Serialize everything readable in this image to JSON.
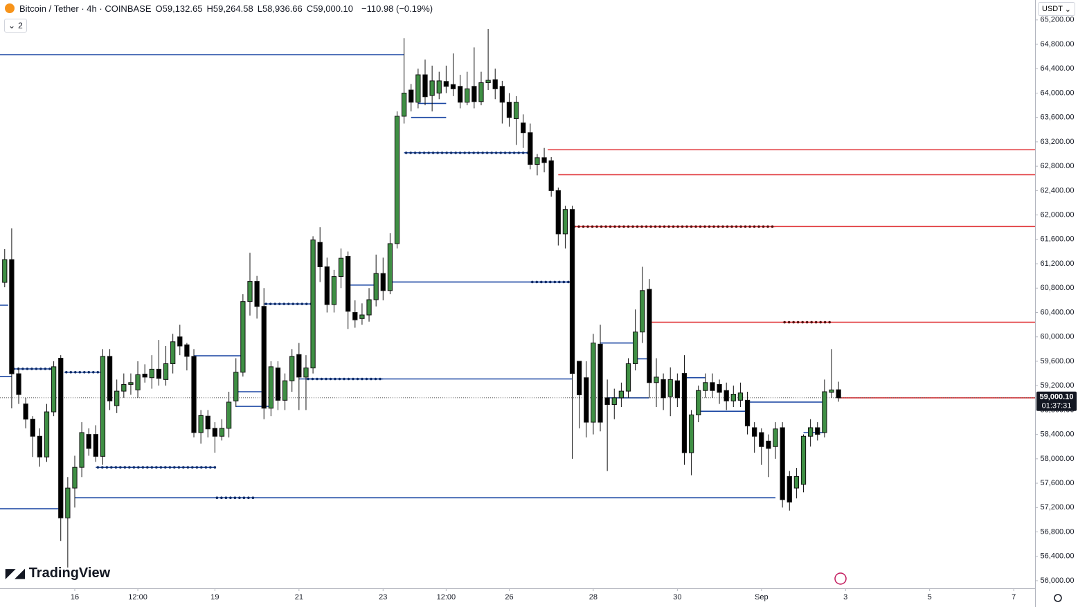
{
  "header": {
    "symbol": "Bitcoin / Tether · 4h · COINBASE",
    "ohlc": [
      {
        "key": "O",
        "text": "59,132.65"
      },
      {
        "key": "H",
        "text": "59,264.58"
      },
      {
        "key": "L",
        "text": "58,936.66"
      },
      {
        "key": "C",
        "text": "59,000.10"
      }
    ],
    "change": "−110.98 (−0.19%)",
    "indicator_count": "2",
    "currency": "USDT",
    "logo": "TradingView"
  },
  "chart_data": {
    "type": "candlestick",
    "up_color": "#3f8f44",
    "down_color": "#000000",
    "open": [
      60894,
      61268,
      59395,
      58900,
      58650,
      58370,
      58030,
      58770,
      59650,
      57030,
      57520,
      57860,
      58400,
      58400,
      58040,
      59680,
      58870,
      59110,
      59220,
      59130,
      59390,
      59330,
      59470,
      59300,
      59560,
      60000,
      59870,
      59680,
      58430,
      58700,
      58500,
      58370,
      58500,
      58950,
      59420,
      60580,
      60910,
      60500,
      58830,
      59490,
      58960,
      59280,
      59710,
      59340,
      59490,
      61550,
      61150,
      60530,
      60990,
      61320,
      60400,
      60300,
      60360,
      60610,
      61040,
      60760,
      61530,
      63620,
      64050,
      63850,
      64300,
      63960,
      64000,
      64190,
      64140,
      64110,
      63850,
      64110,
      63860,
      64170,
      64220,
      64110,
      63850,
      63580,
      63510,
      63350,
      62830,
      62940,
      62890,
      62400,
      61690,
      62090,
      59600,
      59330,
      58600,
      59880,
      59000,
      58890,
      59000,
      59110,
      59560,
      60080,
      60780,
      59250,
      59300,
      59020,
      59280,
      59400,
      58100,
      58720,
      59120,
      59250,
      59220,
      59120,
      58950,
      58960,
      58960,
      58510,
      58430,
      58290,
      58200,
      58510,
      57710,
      57520,
      57580,
      58370,
      58510,
      58430,
      59090,
      59132.65
    ],
    "high": [
      61439,
      61780,
      59500,
      59000,
      58700,
      58500,
      58900,
      59600,
      59700,
      57700,
      58050,
      58600,
      58500,
      58550,
      59800,
      59800,
      59300,
      59400,
      59400,
      59600,
      59550,
      59700,
      59950,
      59850,
      60050,
      60200,
      59900,
      59800,
      58800,
      58800,
      58600,
      58650,
      59100,
      59650,
      60700,
      61380,
      61000,
      60800,
      59600,
      59600,
      59400,
      59800,
      59900,
      59700,
      61650,
      61800,
      61300,
      61100,
      61450,
      61400,
      60600,
      60550,
      60800,
      61350,
      61300,
      61700,
      63700,
      64900,
      64150,
      64400,
      64550,
      64450,
      64350,
      64450,
      64650,
      64300,
      64350,
      64750,
      64350,
      65050,
      64400,
      64200,
      64000,
      63950,
      63650,
      63500,
      63000,
      63100,
      62950,
      62450,
      62150,
      62150,
      59600,
      59600,
      60050,
      60200,
      59300,
      59150,
      59250,
      59650,
      60450,
      61150,
      60950,
      59650,
      59400,
      59500,
      59400,
      59700,
      58800,
      59200,
      59400,
      59400,
      59300,
      59250,
      59200,
      59250,
      59100,
      58600,
      58500,
      58400,
      58600,
      58600,
      57800,
      57850,
      58400,
      58650,
      58600,
      59300,
      59800,
      59264.58
    ],
    "low": [
      60814,
      58827,
      58900,
      58500,
      58030,
      57870,
      57950,
      58700,
      56650,
      56215,
      57200,
      57700,
      58050,
      57950,
      57900,
      58800,
      58750,
      59000,
      59050,
      59000,
      59250,
      59150,
      59200,
      59200,
      59400,
      59700,
      59450,
      58350,
      58250,
      58350,
      58100,
      58300,
      58350,
      58850,
      59350,
      60350,
      60300,
      58650,
      58700,
      58800,
      58800,
      59100,
      58800,
      58800,
      59400,
      60900,
      60400,
      60400,
      60800,
      60130,
      60150,
      60200,
      60250,
      60500,
      60600,
      60700,
      61450,
      63500,
      63700,
      63750,
      63800,
      63700,
      63900,
      64000,
      63950,
      63750,
      63800,
      63750,
      63800,
      64050,
      63900,
      63500,
      63450,
      63150,
      63100,
      62750,
      62650,
      62700,
      62300,
      61500,
      61450,
      58000,
      58500,
      58350,
      58400,
      58450,
      57800,
      58650,
      58850,
      59000,
      59450,
      59900,
      59000,
      58850,
      58800,
      58700,
      58850,
      57900,
      57730,
      58600,
      59000,
      59000,
      58900,
      58800,
      58850,
      58850,
      58400,
      58100,
      57900,
      57700,
      58000,
      57200,
      57150,
      57350,
      57450,
      58200,
      58300,
      58350,
      59000,
      58936.66
    ],
    "close": [
      61268,
      59395,
      59054,
      58650,
      58370,
      58030,
      58770,
      59510,
      57030,
      57520,
      57860,
      58430,
      58170,
      58040,
      59680,
      58950,
      59110,
      59220,
      59250,
      59380,
      59340,
      59470,
      59320,
      59560,
      59920,
      59850,
      59680,
      58430,
      58710,
      58490,
      58370,
      58500,
      58930,
      59420,
      60580,
      60910,
      60500,
      58830,
      59510,
      58960,
      59280,
      59680,
      59340,
      59490,
      61590,
      61150,
      60530,
      60990,
      61290,
      60420,
      60280,
      60360,
      60610,
      61040,
      60760,
      61530,
      63620,
      64000,
      63850,
      64300,
      63940,
      64200,
      64200,
      64110,
      64070,
      63850,
      64070,
      63860,
      64170,
      64210,
      64070,
      63850,
      63600,
      63850,
      63350,
      62830,
      62940,
      62860,
      62400,
      61690,
      62090,
      59400,
      59050,
      58600,
      59900,
      58600,
      58890,
      59000,
      59110,
      59560,
      60080,
      60760,
      59250,
      59340,
      59000,
      59300,
      59000,
      58100,
      58720,
      59120,
      59250,
      59120,
      59090,
      58950,
      59060,
      59080,
      58540,
      58370,
      58200,
      58170,
      58490,
      57330,
      57290,
      57710,
      58370,
      58510,
      58400,
      59100,
      59130,
      59000.1
    ],
    "xlim": [
      -0.67,
      147.05
    ],
    "ylim": [
      55875,
      65527
    ],
    "xticks": [
      {
        "value": 10,
        "label": "16"
      },
      {
        "value": 19,
        "label": "12:00"
      },
      {
        "value": 30,
        "label": "19"
      },
      {
        "value": 42,
        "label": "21"
      },
      {
        "value": 54,
        "label": "23"
      },
      {
        "value": 63,
        "label": "12:00"
      },
      {
        "value": 72,
        "label": "26"
      },
      {
        "value": 84,
        "label": "28"
      },
      {
        "value": 96,
        "label": "30"
      },
      {
        "value": 108,
        "label": "Sep"
      },
      {
        "value": 120,
        "label": "3"
      },
      {
        "value": 132,
        "label": "5"
      },
      {
        "value": 144,
        "label": "7"
      }
    ],
    "yticks": [
      {
        "value": 56000,
        "label": "56,000.00"
      },
      {
        "value": 56400,
        "label": "56,400.00"
      },
      {
        "value": 56800,
        "label": "56,800.00"
      },
      {
        "value": 57200,
        "label": "57,200.00"
      },
      {
        "value": 57600,
        "label": "57,600.00"
      },
      {
        "value": 58000,
        "label": "58,000.00"
      },
      {
        "value": 58400,
        "label": "58,400.00"
      },
      {
        "value": 58800,
        "label": "58,800.00"
      },
      {
        "value": 59200,
        "label": "59,200.00"
      },
      {
        "value": 59600,
        "label": "59,600.00"
      },
      {
        "value": 60000,
        "label": "60,000.00"
      },
      {
        "value": 60400,
        "label": "60,400.00"
      },
      {
        "value": 60800,
        "label": "60,800.00"
      },
      {
        "value": 61200,
        "label": "61,200.00"
      },
      {
        "value": 61600,
        "label": "61,600.00"
      },
      {
        "value": 62000,
        "label": "62,000.00"
      },
      {
        "value": 62400,
        "label": "62,400.00"
      },
      {
        "value": 62800,
        "label": "62,800.00"
      },
      {
        "value": 63200,
        "label": "63,200.00"
      },
      {
        "value": 63600,
        "label": "63,600.00"
      },
      {
        "value": 64000,
        "label": "64,000.00"
      },
      {
        "value": 64400,
        "label": "64,400.00"
      },
      {
        "value": 64800,
        "label": "64,800.00"
      },
      {
        "value": 65200,
        "label": "65,200.00"
      }
    ],
    "grid": false,
    "levels": [
      {
        "price": 64630,
        "from": -0.67,
        "to": 57,
        "color": "#1b47a3",
        "style": "solid"
      },
      {
        "price": 57180,
        "from": -0.67,
        "to": 8,
        "color": "#1b47a3",
        "style": "solid"
      },
      {
        "price": 59475,
        "from": 1,
        "to": 7,
        "color": "#1b47a3",
        "style": "dotted"
      },
      {
        "price": 59350,
        "from": -0.67,
        "to": 1,
        "color": "#1b47a3",
        "style": "solid"
      },
      {
        "price": 60520,
        "from": -0.67,
        "to": 0.5,
        "color": "#1b47a3",
        "style": "solid"
      },
      {
        "price": 59420,
        "from": 8.5,
        "to": 14,
        "color": "#1b47a3",
        "style": "dotted"
      },
      {
        "price": 57860,
        "from": 13,
        "to": 30,
        "color": "#1b47a3",
        "style": "dotted"
      },
      {
        "price": 57360,
        "from": 10,
        "to": 110,
        "color": "#1b47a3",
        "style": "solid"
      },
      {
        "price": 57360,
        "from": 30,
        "to": 36,
        "color": "#1b47a3",
        "style": "dotted"
      },
      {
        "price": 59690,
        "from": 27,
        "to": 34,
        "color": "#1b47a3",
        "style": "solid"
      },
      {
        "price": 59100,
        "from": 33,
        "to": 37,
        "color": "#1b47a3",
        "style": "solid"
      },
      {
        "price": 58860,
        "from": 33,
        "to": 38,
        "color": "#1b47a3",
        "style": "solid"
      },
      {
        "price": 60540,
        "from": 37,
        "to": 44,
        "color": "#1b47a3",
        "style": "dotted"
      },
      {
        "price": 59310,
        "from": 42,
        "to": 81,
        "color": "#1b47a3",
        "style": "solid"
      },
      {
        "price": 59310,
        "from": 43,
        "to": 54,
        "color": "#1b47a3",
        "style": "dotted"
      },
      {
        "price": 60900,
        "from": 55,
        "to": 81,
        "color": "#1b47a3",
        "style": "solid"
      },
      {
        "price": 60900,
        "from": 75,
        "to": 81,
        "color": "#1b47a3",
        "style": "dotted"
      },
      {
        "price": 60850,
        "from": 49,
        "to": 53,
        "color": "#1b47a3",
        "style": "solid"
      },
      {
        "price": 63020,
        "from": 57,
        "to": 75,
        "color": "#1b47a3",
        "style": "dotted"
      },
      {
        "price": 63600,
        "from": 58,
        "to": 63,
        "color": "#1b47a3",
        "style": "solid"
      },
      {
        "price": 63830,
        "from": 59,
        "to": 63,
        "color": "#1b47a3",
        "style": "solid"
      },
      {
        "price": 59900,
        "from": 85,
        "to": 90,
        "color": "#1b47a3",
        "style": "solid"
      },
      {
        "price": 59640,
        "from": 90,
        "to": 92,
        "color": "#1b47a3",
        "style": "solid"
      },
      {
        "price": 59000,
        "from": 86,
        "to": 92,
        "color": "#1b47a3",
        "style": "solid"
      },
      {
        "price": 59330,
        "from": 97,
        "to": 100,
        "color": "#1b47a3",
        "style": "solid"
      },
      {
        "price": 58780,
        "from": 99,
        "to": 106,
        "color": "#1b47a3",
        "style": "solid"
      },
      {
        "price": 58930,
        "from": 106,
        "to": 117,
        "color": "#1b47a3",
        "style": "solid"
      },
      {
        "price": 58430,
        "from": 114,
        "to": 117,
        "color": "#1b47a3",
        "style": "solid"
      },
      {
        "price": 63070,
        "from": 77.5,
        "to": 147.05,
        "color": "#e0363a",
        "style": "solid"
      },
      {
        "price": 62660,
        "from": 79,
        "to": 147.05,
        "color": "#e0363a",
        "style": "solid"
      },
      {
        "price": 61810,
        "from": 81,
        "to": 147.05,
        "color": "#e0363a",
        "style": "solid"
      },
      {
        "price": 61810,
        "from": 81,
        "to": 110,
        "color": "#e0363a",
        "style": "dotted"
      },
      {
        "price": 60240,
        "from": 92,
        "to": 147.05,
        "color": "#e0363a",
        "style": "solid"
      },
      {
        "price": 60240,
        "from": 111,
        "to": 118,
        "color": "#e0363a",
        "style": "dotted"
      },
      {
        "price": 59000,
        "from": 119,
        "to": 147.05,
        "color": "#e0363a",
        "style": "solid"
      }
    ],
    "last_price": {
      "value": 59000.1,
      "label": "59,000.10"
    },
    "countdown": "01:37:31"
  }
}
